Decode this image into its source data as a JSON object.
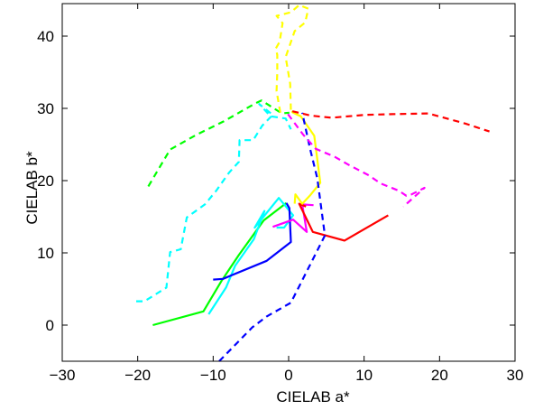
{
  "chart_data": {
    "type": "line",
    "xlabel": "CIELAB  a*",
    "ylabel": "CIELAB  b*",
    "xlim": [
      -30,
      30
    ],
    "ylim": [
      -5,
      44.5
    ],
    "xticks": [
      -30,
      -20,
      -10,
      0,
      10,
      20,
      30
    ],
    "yticks": [
      0,
      10,
      20,
      30,
      40
    ],
    "grid": false,
    "series": [
      {
        "color": "#00ff00",
        "dash": false,
        "x": [
          -18,
          -11.3,
          -8.9,
          -6.6,
          -3.3,
          -0.3
        ],
        "y": [
          0,
          1.9,
          6.1,
          9.7,
          14.5,
          16.9
        ]
      },
      {
        "color": "#00ffff",
        "dash": false,
        "x": [
          -10.6,
          -8.3,
          -7.1,
          -4.6,
          -3.2,
          -4.5,
          -1.3,
          0.6,
          -0.6,
          -1.6
        ],
        "y": [
          1.5,
          5.2,
          8.2,
          11.9,
          15.8,
          13.5,
          17.6,
          15.2,
          13.5,
          13.5
        ]
      },
      {
        "color": "#0000ff",
        "dash": false,
        "x": [
          -10,
          -8.7,
          -2.9,
          0.3,
          0.1,
          -0.3
        ],
        "y": [
          6.3,
          6.4,
          8.9,
          11.5,
          16.2,
          16.9
        ]
      },
      {
        "color": "#ff00ff",
        "dash": false,
        "x": [
          -2.1,
          0.6,
          2.4,
          1.8,
          3.3
        ],
        "y": [
          13.6,
          14.6,
          12.9,
          16.7,
          16.6
        ]
      },
      {
        "color": "#ff0000",
        "dash": false,
        "x": [
          2.3,
          1.4,
          3.2,
          7.4,
          13.2
        ],
        "y": [
          16.4,
          16.8,
          12.9,
          11.7,
          15.2
        ]
      },
      {
        "color": "#ffff00",
        "dash": false,
        "x": [
          0.8,
          0.9,
          1.8,
          2.8,
          4.2,
          3.4,
          1.6,
          0.6,
          0.4
        ],
        "y": [
          16.8,
          18.1,
          16.8,
          17.9,
          19.7,
          26.2,
          28.9,
          29.4,
          29.6
        ]
      },
      {
        "color": "#00ff00",
        "dash": true,
        "x": [
          -18.6,
          -15.7,
          -12.3,
          -8.6,
          -4.4,
          -3.6,
          -0.9,
          0.1
        ],
        "y": [
          19.2,
          24.3,
          26.3,
          28.2,
          30.7,
          31.1,
          29.3,
          29.4
        ]
      },
      {
        "color": "#00ffff",
        "dash": true,
        "x": [
          -20.2,
          -19.1,
          -16.2,
          -15.7,
          -14.3,
          -13.5,
          -11.1,
          -9.6,
          -7.9,
          -6.6,
          -6.5,
          -4.7,
          -3.5,
          -2.1,
          -3.9,
          -2.4,
          -0.4,
          0.3
        ],
        "y": [
          3.3,
          3.3,
          5.2,
          10.1,
          10.5,
          14.9,
          16.7,
          18.6,
          21.1,
          22.6,
          25.6,
          25.6,
          27.6,
          29.1,
          30.6,
          28.9,
          28.6,
          27.1
        ]
      },
      {
        "color": "#0000ff",
        "dash": true,
        "x": [
          -9.2,
          -4.8,
          -2.9,
          0.3,
          4.8,
          3.8,
          2.8,
          1.8
        ],
        "y": [
          -5,
          -0.3,
          1.2,
          3.1,
          12.4,
          20.3,
          24.6,
          29.4
        ]
      },
      {
        "color": "#ff00ff",
        "dash": true,
        "x": [
          -0.1,
          1.9,
          3.6,
          6.1,
          8.1,
          10.5,
          12.2,
          14.6,
          15.6,
          16.3,
          18,
          15.2
        ],
        "y": [
          29.2,
          26.4,
          24.4,
          23.3,
          22.1,
          20.8,
          19.6,
          18.6,
          17.9,
          18.1,
          19,
          16.4
        ]
      },
      {
        "color": "#ff0000",
        "dash": true,
        "x": [
          0.5,
          2.9,
          5.7,
          10.1,
          13.7,
          18.5,
          23.4,
          26.6
        ],
        "y": [
          29.6,
          29,
          28.7,
          29.1,
          29.2,
          29.3,
          27.9,
          26.8
        ]
      },
      {
        "color": "#ffff00",
        "dash": true,
        "x": [
          -1.1,
          -1.6,
          -1.5,
          -1.5,
          -1.7,
          -1.2,
          -0.8,
          -1.6,
          0.3,
          1.4,
          2.6,
          2.2,
          0.8,
          -0.4,
          0.2,
          0.3
        ],
        "y": [
          29.4,
          32.4,
          34.9,
          37.4,
          38.3,
          39.2,
          41.8,
          42.8,
          43.3,
          44.3,
          43.8,
          41.9,
          40.7,
          37.1,
          33.4,
          29.6
        ]
      }
    ]
  }
}
